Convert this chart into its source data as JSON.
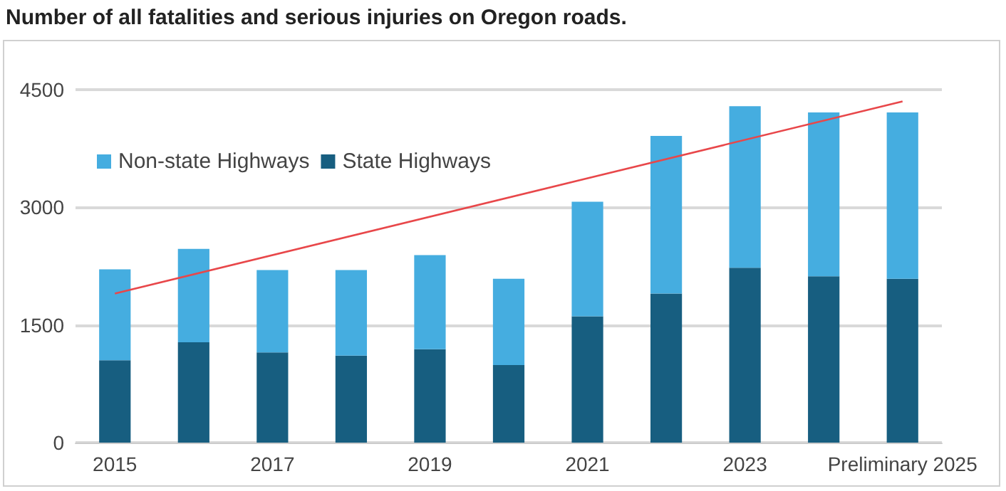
{
  "chart_data": {
    "type": "bar",
    "title": "Number of all fatalities and serious injuries on Oregon roads.",
    "categories": [
      "2015",
      null,
      "2017",
      null,
      "2019",
      null,
      "2021",
      null,
      "2023",
      null,
      "Preliminary 2025"
    ],
    "stacked": true,
    "series": [
      {
        "name": "State Highways",
        "color": "#175e80",
        "values": [
          1050,
          1280,
          1150,
          1110,
          1190,
          990,
          1610,
          1900,
          2230,
          2120,
          2090
        ]
      },
      {
        "name": "Non-state Highways",
        "color": "#45ade0",
        "values": [
          1160,
          1190,
          1050,
          1090,
          1200,
          1100,
          1460,
          2010,
          2060,
          2090,
          2120
        ]
      },
      {
        "type": "line",
        "color": "#e8474a",
        "values": [
          1900,
          null,
          null,
          null,
          null,
          null,
          null,
          null,
          null,
          null,
          4350
        ],
        "marker": "none"
      }
    ],
    "ylim": [
      0,
      4500
    ],
    "yticks": [
      0,
      1500,
      3000,
      4500
    ],
    "grid": "y",
    "legend": "top left"
  }
}
